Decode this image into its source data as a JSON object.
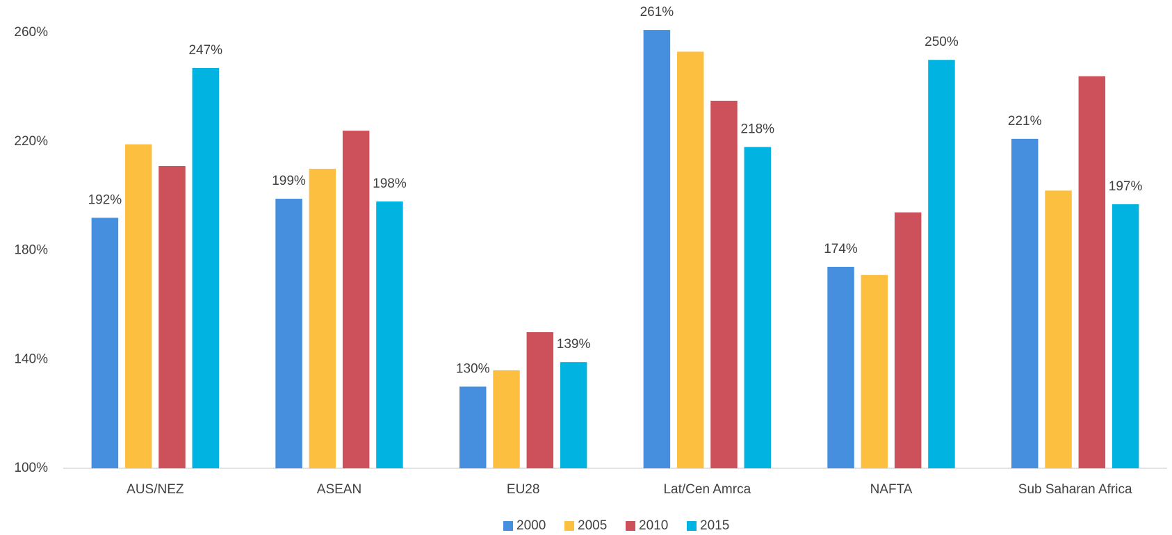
{
  "chart_data": {
    "type": "bar",
    "categories": [
      "AUS/NEZ",
      "ASEAN",
      "EU28",
      "Lat/Cen Amrca",
      "NAFTA",
      "Sub Saharan Africa"
    ],
    "series": [
      {
        "name": "2000",
        "color": "#458fde",
        "values": [
          192,
          199,
          130,
          261,
          174,
          221
        ],
        "value_labels": [
          "192%",
          "199%",
          "130%",
          "261%",
          "174%",
          "221%"
        ]
      },
      {
        "name": "2005",
        "color": "#fdbf40",
        "values": [
          219,
          210,
          136,
          253,
          171,
          202
        ],
        "value_labels": [
          null,
          null,
          null,
          null,
          null,
          null
        ]
      },
      {
        "name": "2010",
        "color": "#cc515a",
        "values": [
          211,
          224,
          150,
          235,
          194,
          244
        ],
        "value_labels": [
          null,
          null,
          null,
          null,
          null,
          null
        ]
      },
      {
        "name": "2015",
        "color": "#00b3e1",
        "values": [
          247,
          198,
          139,
          218,
          250,
          197
        ],
        "value_labels": [
          "247%",
          "198%",
          "139%",
          "218%",
          "250%",
          "197%"
        ]
      }
    ],
    "ylim": [
      100,
      260
    ],
    "yticks": [
      {
        "value": 100,
        "label": "100%"
      },
      {
        "value": 140,
        "label": "140%"
      },
      {
        "value": 180,
        "label": "180%"
      },
      {
        "value": 220,
        "label": "220%"
      },
      {
        "value": 260,
        "label": "260%"
      }
    ],
    "grid": false,
    "legend": "bottom"
  }
}
